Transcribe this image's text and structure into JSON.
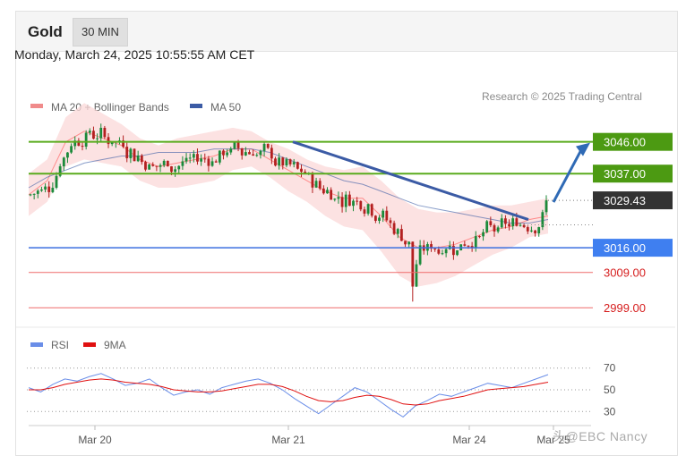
{
  "header": {
    "instrument": "Gold",
    "interval": "30 MIN",
    "datetime": "Monday, March 24, 2025 10:55:55 AM CET",
    "credit": "Research © 2025 Trading Central",
    "watermark": "头@EBC Nancy"
  },
  "legend": {
    "bb": "MA 20 + Bollinger Bands",
    "ma50": "MA 50",
    "rsi": "RSI",
    "ma9": "9MA"
  },
  "colors": {
    "up": "#1b8a3a",
    "down": "#b32020",
    "bb_fill": "#fbd8d8",
    "ma20": "#ff8a8a",
    "ma50": "#3b5ba5",
    "resistance": "#5aab1d",
    "support": "#3b6fe0",
    "support_red": "#ef6a6a",
    "arrow": "#2f6ab5",
    "rsi": "#6a8ee8",
    "ma9": "#e01010",
    "current": "#333333"
  },
  "chart_data": [
    {
      "type": "candlestick",
      "title": "Gold",
      "interval": "30 MIN",
      "y_unit": "price",
      "ylim": [
        2995,
        3052
      ],
      "x_labels": [
        "Mar 20",
        "Mar 21",
        "Mar 24",
        "Mar 25"
      ],
      "current_price": 3029.43,
      "levels": [
        {
          "value": 3046.0,
          "label": "3046.00",
          "kind": "resistance"
        },
        {
          "value": 3037.0,
          "label": "3037.00",
          "kind": "resistance"
        },
        {
          "value": 3029.43,
          "label": "3029.43",
          "kind": "current"
        },
        {
          "value": 3016.0,
          "label": "3016.00",
          "kind": "support"
        },
        {
          "value": 3009.0,
          "label": "3009.00",
          "kind": "support-minor"
        },
        {
          "value": 2999.0,
          "label": "2999.00",
          "kind": "support-minor"
        }
      ],
      "series": [
        {
          "name": "MA 20 + Bollinger Bands",
          "approx_path": [
            3031,
            3035,
            3046,
            3049,
            3047,
            3045,
            3041,
            3039,
            3040,
            3041,
            3042,
            3044,
            3044,
            3041,
            3038,
            3035,
            3032,
            3030,
            3030,
            3025,
            3019,
            3016,
            3016,
            3017,
            3019,
            3021,
            3022,
            3024,
            3025
          ]
        },
        {
          "name": "MA 50",
          "approx_path": [
            3033,
            3036,
            3038,
            3040,
            3041,
            3042,
            3042,
            3043,
            3043,
            3043,
            3044,
            3044,
            3044,
            3043,
            3041,
            3039,
            3037,
            3035,
            3034,
            3032,
            3030,
            3028,
            3027,
            3026,
            3025,
            3024,
            3023,
            3023,
            3024
          ]
        }
      ],
      "trendlines": [
        {
          "from": {
            "x": "Mar 21",
            "y": 3046
          },
          "to": {
            "x": "Mar 24",
            "y": 3024
          },
          "kind": "descending"
        }
      ],
      "projection_arrow": {
        "from": 3029.43,
        "to": 3046.0
      }
    },
    {
      "type": "line",
      "title": "RSI",
      "ylim": [
        22,
        78
      ],
      "yticks": [
        70,
        50,
        30
      ],
      "series": [
        {
          "name": "RSI",
          "approx_path": [
            52,
            48,
            55,
            60,
            58,
            62,
            65,
            60,
            54,
            56,
            60,
            52,
            45,
            48,
            50,
            46,
            52,
            55,
            58,
            60,
            56,
            50,
            42,
            35,
            28,
            36,
            44,
            52,
            48,
            40,
            32,
            25,
            35,
            40,
            46,
            44,
            48,
            52,
            56,
            54,
            52,
            56,
            60,
            64
          ]
        },
        {
          "name": "9MA",
          "approx_path": [
            50,
            50,
            52,
            55,
            57,
            59,
            60,
            59,
            57,
            56,
            55,
            53,
            50,
            49,
            48,
            48,
            49,
            51,
            53,
            55,
            55,
            53,
            49,
            44,
            40,
            39,
            40,
            43,
            45,
            44,
            41,
            37,
            36,
            37,
            40,
            42,
            44,
            47,
            50,
            51,
            52,
            53,
            55,
            57
          ]
        }
      ]
    }
  ]
}
